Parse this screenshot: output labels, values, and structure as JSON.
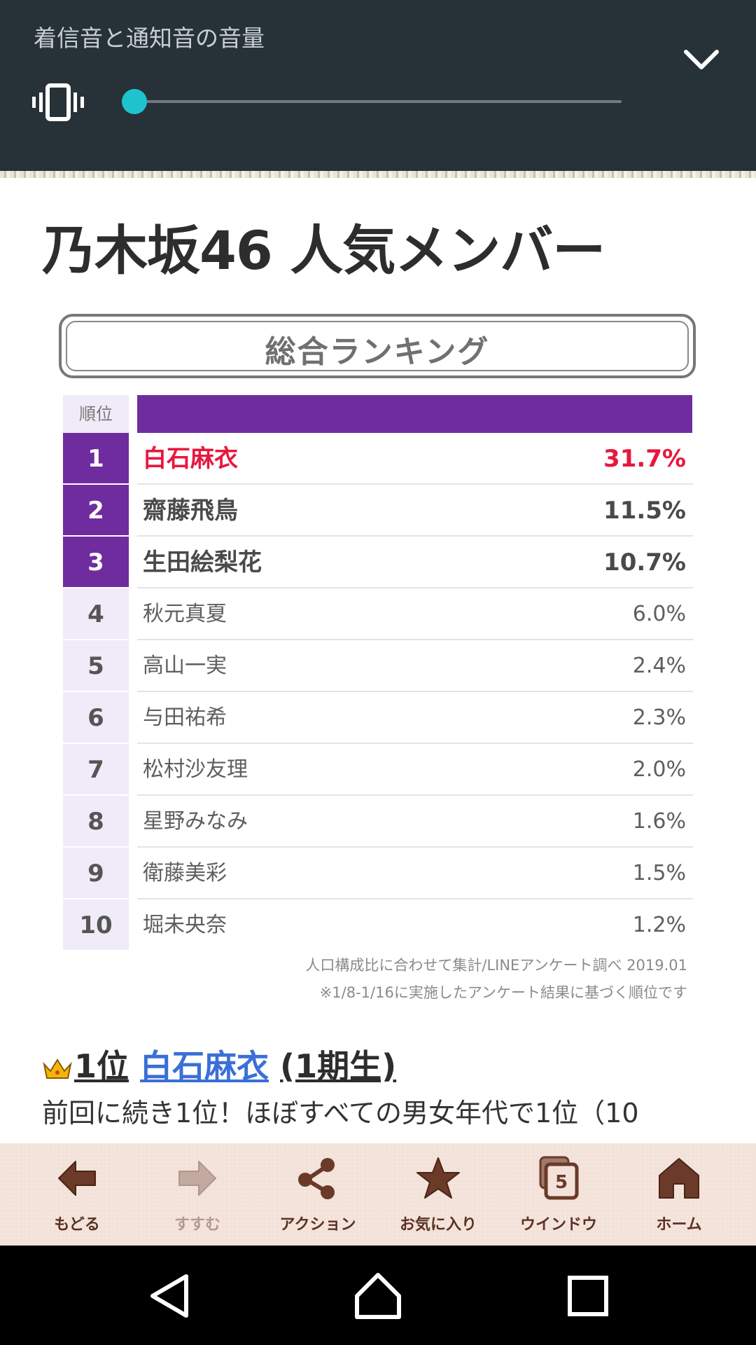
{
  "volume_panel": {
    "title": "着信音と通知音の音量",
    "mode_icon": "vibrate-icon",
    "collapse_icon": "chevron-down-icon",
    "level": 0.0
  },
  "page": {
    "title": "乃木坂46 人気メンバー",
    "banner": "総合ランキング",
    "header_rank": "順位",
    "rankings": [
      {
        "rank": "1",
        "name": "白石麻衣",
        "percent": "31.7%"
      },
      {
        "rank": "2",
        "name": "齋藤飛鳥",
        "percent": "11.5%"
      },
      {
        "rank": "3",
        "name": "生田絵梨花",
        "percent": "10.7%"
      },
      {
        "rank": "4",
        "name": "秋元真夏",
        "percent": "6.0%"
      },
      {
        "rank": "5",
        "name": "高山一実",
        "percent": "2.4%"
      },
      {
        "rank": "6",
        "name": "与田祐希",
        "percent": "2.3%"
      },
      {
        "rank": "7",
        "name": "松村沙友理",
        "percent": "2.0%"
      },
      {
        "rank": "8",
        "name": "星野みなみ",
        "percent": "1.6%"
      },
      {
        "rank": "9",
        "name": "衛藤美彩",
        "percent": "1.5%"
      },
      {
        "rank": "10",
        "name": "堀未央奈",
        "percent": "1.2%"
      }
    ],
    "note1": "人口構成比に合わせて集計/LINEアンケート調べ 2019.01",
    "note2": "※1/8-1/16に実施したアンケート結果に基づく順位です",
    "section": {
      "rank_label": "1位",
      "name_link": "白石麻衣",
      "generation": "(1期生)"
    },
    "body_line1": "前回に続き1位！ほぼすべての男女年代で1位（10"
  },
  "toolbar": {
    "items": [
      {
        "label": "もどる",
        "icon": "back-arrow-icon"
      },
      {
        "label": "すすむ",
        "icon": "forward-arrow-icon"
      },
      {
        "label": "アクション",
        "icon": "share-icon"
      },
      {
        "label": "お気に入り",
        "icon": "star-icon"
      },
      {
        "label": "ウインドウ",
        "icon": "windows-icon",
        "badge": "5"
      },
      {
        "label": "ホーム",
        "icon": "home-icon"
      }
    ]
  },
  "colors": {
    "panel_bg": "#263238",
    "accent": "#1fc3cf",
    "ranking_purple": "#6f2c9f",
    "first_place_red": "#e8173d",
    "link_blue": "#3a6fd8",
    "toolbar_bg": "#f3e2d9",
    "toolbar_icon": "#5b3224"
  }
}
